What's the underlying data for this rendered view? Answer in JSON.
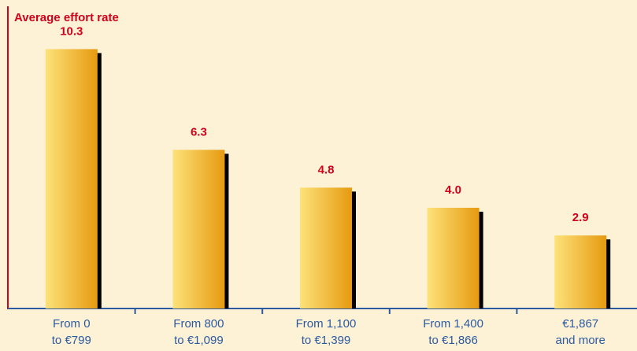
{
  "chart_data": {
    "type": "bar",
    "ylabel": "Average effort rate",
    "categories": [
      [
        "From 0",
        "to  €799"
      ],
      [
        "From 800",
        "to €1,099"
      ],
      [
        "From 1,100",
        "to €1,399"
      ],
      [
        "From 1,400",
        "to €1,866"
      ],
      [
        "€1,867",
        "and more"
      ]
    ],
    "values": [
      10.3,
      6.3,
      4.8,
      4.0,
      2.9
    ],
    "value_labels": [
      "10.3",
      "6.3",
      "4.8",
      "4.0",
      "2.9"
    ],
    "ylim": [
      0,
      12
    ],
    "grid": false,
    "legend": "none",
    "colors": {
      "background": "#fdf1d6",
      "axis_y": "#d0021b",
      "axis_x": "#2c5aa0",
      "label": "#d0021b",
      "tick": "#2c5aa0",
      "bar_light": "#fde27a",
      "bar_dark": "#e69a10",
      "shadow": "#000000"
    }
  }
}
